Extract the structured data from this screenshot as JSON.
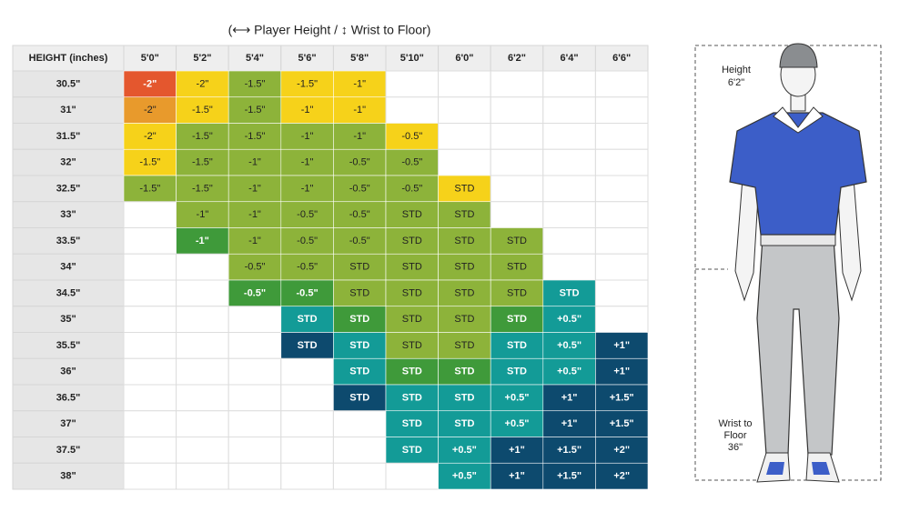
{
  "title": "(⟷ Player Height / ↕ Wrist to Floor)",
  "table": {
    "columns": [
      "HEIGHT (inches)",
      "5'0\"",
      "5'2\"",
      "5'4\"",
      "5'6\"",
      "5'8\"",
      "5'10\"",
      "6'0\"",
      "6'2\"",
      "6'4\"",
      "6'6\""
    ],
    "rows": [
      {
        "label": "30.5\"",
        "cells": [
          {
            "text": "-2\"",
            "color": "#e4572e"
          },
          {
            "text": "-2\"",
            "color": "#f6d21a"
          },
          {
            "text": "-1.5\"",
            "color": "#8db33a"
          },
          {
            "text": "-1.5\"",
            "color": "#f6d21a"
          },
          {
            "text": "-1\"",
            "color": "#f6d21a"
          },
          null,
          null,
          null,
          null,
          null
        ]
      },
      {
        "label": "31\"",
        "cells": [
          {
            "text": "-2\"",
            "color": "#e89a2c"
          },
          {
            "text": "-1.5\"",
            "color": "#f6d21a"
          },
          {
            "text": "-1.5\"",
            "color": "#8db33a"
          },
          {
            "text": "-1\"",
            "color": "#f6d21a"
          },
          {
            "text": "-1\"",
            "color": "#f6d21a"
          },
          null,
          null,
          null,
          null,
          null
        ]
      },
      {
        "label": "31.5\"",
        "cells": [
          {
            "text": "-2\"",
            "color": "#f6d21a"
          },
          {
            "text": "-1.5\"",
            "color": "#8db33a"
          },
          {
            "text": "-1.5\"",
            "color": "#8db33a"
          },
          {
            "text": "-1\"",
            "color": "#8db33a"
          },
          {
            "text": "-1\"",
            "color": "#8db33a"
          },
          {
            "text": "-0.5\"",
            "color": "#f6d21a"
          },
          null,
          null,
          null,
          null
        ]
      },
      {
        "label": "32\"",
        "cells": [
          {
            "text": "-1.5\"",
            "color": "#f6d21a"
          },
          {
            "text": "-1.5\"",
            "color": "#8db33a"
          },
          {
            "text": "-1\"",
            "color": "#8db33a"
          },
          {
            "text": "-1\"",
            "color": "#8db33a"
          },
          {
            "text": "-0.5\"",
            "color": "#8db33a"
          },
          {
            "text": "-0.5\"",
            "color": "#8db33a"
          },
          null,
          null,
          null,
          null
        ]
      },
      {
        "label": "32.5\"",
        "cells": [
          {
            "text": "-1.5\"",
            "color": "#8db33a"
          },
          {
            "text": "-1.5\"",
            "color": "#8db33a"
          },
          {
            "text": "-1\"",
            "color": "#8db33a"
          },
          {
            "text": "-1\"",
            "color": "#8db33a"
          },
          {
            "text": "-0.5\"",
            "color": "#8db33a"
          },
          {
            "text": "-0.5\"",
            "color": "#8db33a"
          },
          {
            "text": "STD",
            "color": "#f6d21a"
          },
          null,
          null,
          null
        ]
      },
      {
        "label": "33\"",
        "cells": [
          null,
          {
            "text": "-1\"",
            "color": "#8db33a"
          },
          {
            "text": "-1\"",
            "color": "#8db33a"
          },
          {
            "text": "-0.5\"",
            "color": "#8db33a"
          },
          {
            "text": "-0.5\"",
            "color": "#8db33a"
          },
          {
            "text": "STD",
            "color": "#8db33a"
          },
          {
            "text": "STD",
            "color": "#8db33a"
          },
          null,
          null,
          null
        ]
      },
      {
        "label": "33.5\"",
        "cells": [
          null,
          {
            "text": "-1\"",
            "color": "#3f9a3a"
          },
          {
            "text": "-1\"",
            "color": "#8db33a"
          },
          {
            "text": "-0.5\"",
            "color": "#8db33a"
          },
          {
            "text": "-0.5\"",
            "color": "#8db33a"
          },
          {
            "text": "STD",
            "color": "#8db33a"
          },
          {
            "text": "STD",
            "color": "#8db33a"
          },
          {
            "text": "STD",
            "color": "#8db33a"
          },
          null,
          null
        ]
      },
      {
        "label": "34\"",
        "cells": [
          null,
          null,
          {
            "text": "-0.5\"",
            "color": "#8db33a"
          },
          {
            "text": "-0.5\"",
            "color": "#8db33a"
          },
          {
            "text": "STD",
            "color": "#8db33a"
          },
          {
            "text": "STD",
            "color": "#8db33a"
          },
          {
            "text": "STD",
            "color": "#8db33a"
          },
          {
            "text": "STD",
            "color": "#8db33a"
          },
          null,
          null
        ]
      },
      {
        "label": "34.5\"",
        "cells": [
          null,
          null,
          {
            "text": "-0.5\"",
            "color": "#3f9a3a"
          },
          {
            "text": "-0.5\"",
            "color": "#3f9a3a"
          },
          {
            "text": "STD",
            "color": "#8db33a"
          },
          {
            "text": "STD",
            "color": "#8db33a"
          },
          {
            "text": "STD",
            "color": "#8db33a"
          },
          {
            "text": "STD",
            "color": "#8db33a"
          },
          {
            "text": "STD",
            "color": "#139b97"
          },
          null
        ]
      },
      {
        "label": "35\"",
        "cells": [
          null,
          null,
          null,
          {
            "text": "STD",
            "color": "#139b97"
          },
          {
            "text": "STD",
            "color": "#3f9a3a"
          },
          {
            "text": "STD",
            "color": "#8db33a"
          },
          {
            "text": "STD",
            "color": "#8db33a"
          },
          {
            "text": "STD",
            "color": "#3f9a3a"
          },
          {
            "text": "+0.5\"",
            "color": "#139b97"
          },
          null
        ]
      },
      {
        "label": "35.5\"",
        "cells": [
          null,
          null,
          null,
          {
            "text": "STD",
            "color": "#0d4a6e"
          },
          {
            "text": "STD",
            "color": "#139b97"
          },
          {
            "text": "STD",
            "color": "#8db33a"
          },
          {
            "text": "STD",
            "color": "#8db33a"
          },
          {
            "text": "STD",
            "color": "#139b97"
          },
          {
            "text": "+0.5\"",
            "color": "#139b97"
          },
          {
            "text": "+1\"",
            "color": "#0d4a6e"
          }
        ]
      },
      {
        "label": "36\"",
        "cells": [
          null,
          null,
          null,
          null,
          {
            "text": "STD",
            "color": "#139b97"
          },
          {
            "text": "STD",
            "color": "#3f9a3a"
          },
          {
            "text": "STD",
            "color": "#3f9a3a"
          },
          {
            "text": "STD",
            "color": "#139b97"
          },
          {
            "text": "+0.5\"",
            "color": "#139b97"
          },
          {
            "text": "+1\"",
            "color": "#0d4a6e"
          }
        ]
      },
      {
        "label": "36.5\"",
        "cells": [
          null,
          null,
          null,
          null,
          {
            "text": "STD",
            "color": "#0d4a6e"
          },
          {
            "text": "STD",
            "color": "#139b97"
          },
          {
            "text": "STD",
            "color": "#139b97"
          },
          {
            "text": "+0.5\"",
            "color": "#139b97"
          },
          {
            "text": "+1\"",
            "color": "#0d4a6e"
          },
          {
            "text": "+1.5\"",
            "color": "#0d4a6e"
          }
        ]
      },
      {
        "label": "37\"",
        "cells": [
          null,
          null,
          null,
          null,
          null,
          {
            "text": "STD",
            "color": "#139b97"
          },
          {
            "text": "STD",
            "color": "#139b97"
          },
          {
            "text": "+0.5\"",
            "color": "#139b97"
          },
          {
            "text": "+1\"",
            "color": "#0d4a6e"
          },
          {
            "text": "+1.5\"",
            "color": "#0d4a6e"
          }
        ]
      },
      {
        "label": "37.5\"",
        "cells": [
          null,
          null,
          null,
          null,
          null,
          {
            "text": "STD",
            "color": "#139b97"
          },
          {
            "text": "+0.5\"",
            "color": "#139b97"
          },
          {
            "text": "+1\"",
            "color": "#0d4a6e"
          },
          {
            "text": "+1.5\"",
            "color": "#0d4a6e"
          },
          {
            "text": "+2\"",
            "color": "#0d4a6e"
          }
        ]
      },
      {
        "label": "38\"",
        "cells": [
          null,
          null,
          null,
          null,
          null,
          null,
          {
            "text": "+0.5\"",
            "color": "#139b97"
          },
          {
            "text": "+1\"",
            "color": "#0d4a6e"
          },
          {
            "text": "+1.5\"",
            "color": "#0d4a6e"
          },
          {
            "text": "+2\"",
            "color": "#0d4a6e"
          }
        ]
      }
    ]
  },
  "figure": {
    "height_label": [
      "Height",
      "6'2\""
    ],
    "wrist_label": [
      "Wrist to",
      "Floor",
      "36\""
    ]
  }
}
